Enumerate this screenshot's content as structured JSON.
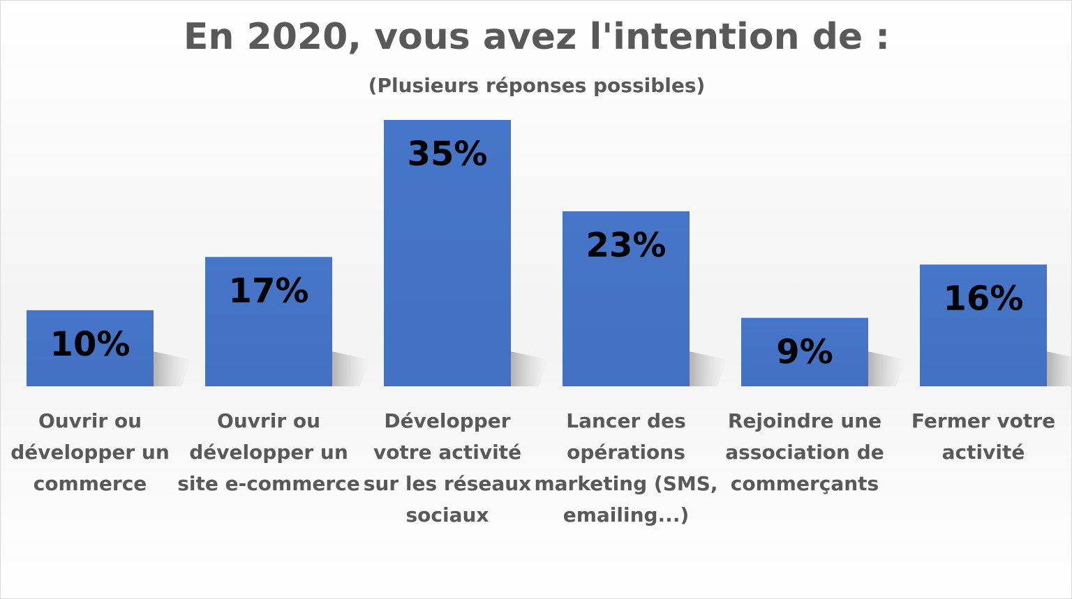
{
  "chart_data": {
    "type": "bar",
    "title": "En 2020, vous avez l'intention de :",
    "subtitle": "(Plusieurs réponses possibles)",
    "categories": [
      [
        "Ouvrir ou",
        "développer un",
        "commerce"
      ],
      [
        "Ouvrir ou",
        "développer un",
        "site e-commerce"
      ],
      [
        "Développer",
        "votre activité",
        "sur les réseaux",
        "sociaux"
      ],
      [
        "Lancer des",
        "opérations",
        "marketing (SMS,",
        "emailing...)"
      ],
      [
        "Rejoindre une",
        "association de",
        "commerçants"
      ],
      [
        "Fermer votre",
        "activité"
      ]
    ],
    "values": [
      10,
      17,
      35,
      23,
      9,
      16
    ],
    "data_labels": [
      "10%",
      "17%",
      "35%",
      "23%",
      "9%",
      "16%"
    ],
    "unit": "%",
    "ylim": [
      0,
      35
    ],
    "grid": false,
    "legend": "none",
    "colors": {
      "bar": "#4472c4",
      "bar_top": "#4a7bd0",
      "shadow": "#bfbfbf",
      "title": "#595959",
      "data_label": "#000000"
    }
  }
}
